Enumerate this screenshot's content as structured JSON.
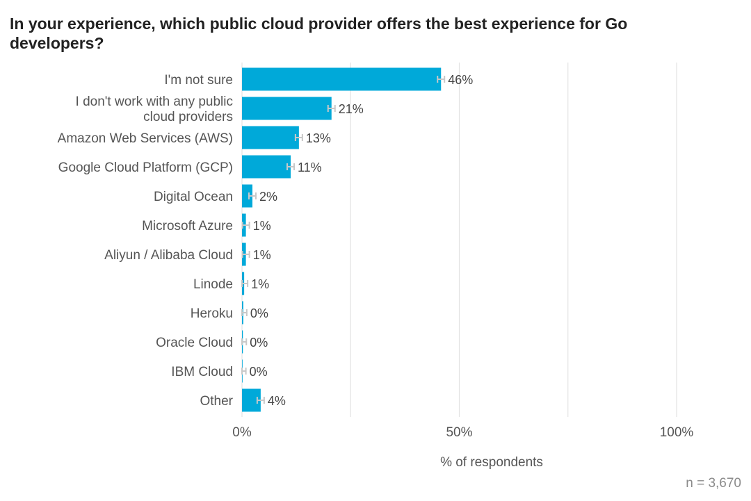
{
  "chart_data": {
    "type": "bar",
    "orientation": "horizontal",
    "title": "In your experience, which public cloud provider offers the best experience for Go developers?",
    "xlabel": "% of respondents",
    "ylabel": "",
    "xlim": [
      0,
      100
    ],
    "xticks": [
      0,
      50,
      100
    ],
    "xtick_labels": [
      "0%",
      "50%",
      "100%"
    ],
    "gridlines": [
      0,
      25,
      50,
      75,
      100
    ],
    "categories": [
      "I'm not sure",
      "I don't work with any public cloud providers",
      "Amazon Web Services (AWS)",
      "Google Cloud Platform (GCP)",
      "Digital Ocean",
      "Microsoft Azure",
      "Aliyun / Alibaba Cloud",
      "Linode",
      "Heroku",
      "Oracle Cloud",
      "IBM Cloud",
      "Other"
    ],
    "values": [
      45.8,
      20.6,
      13.1,
      11.2,
      2.4,
      0.9,
      0.9,
      0.5,
      0.3,
      0.2,
      0.1,
      4.3
    ],
    "value_labels": [
      "46%",
      "21%",
      "13%",
      "11%",
      "2%",
      "1%",
      "1%",
      "1%",
      "0%",
      "0%",
      "0%",
      "4%"
    ],
    "bar_color": "#00a9d9",
    "error_bar_color": "#c8c8c8",
    "note": "n = 3,670"
  }
}
